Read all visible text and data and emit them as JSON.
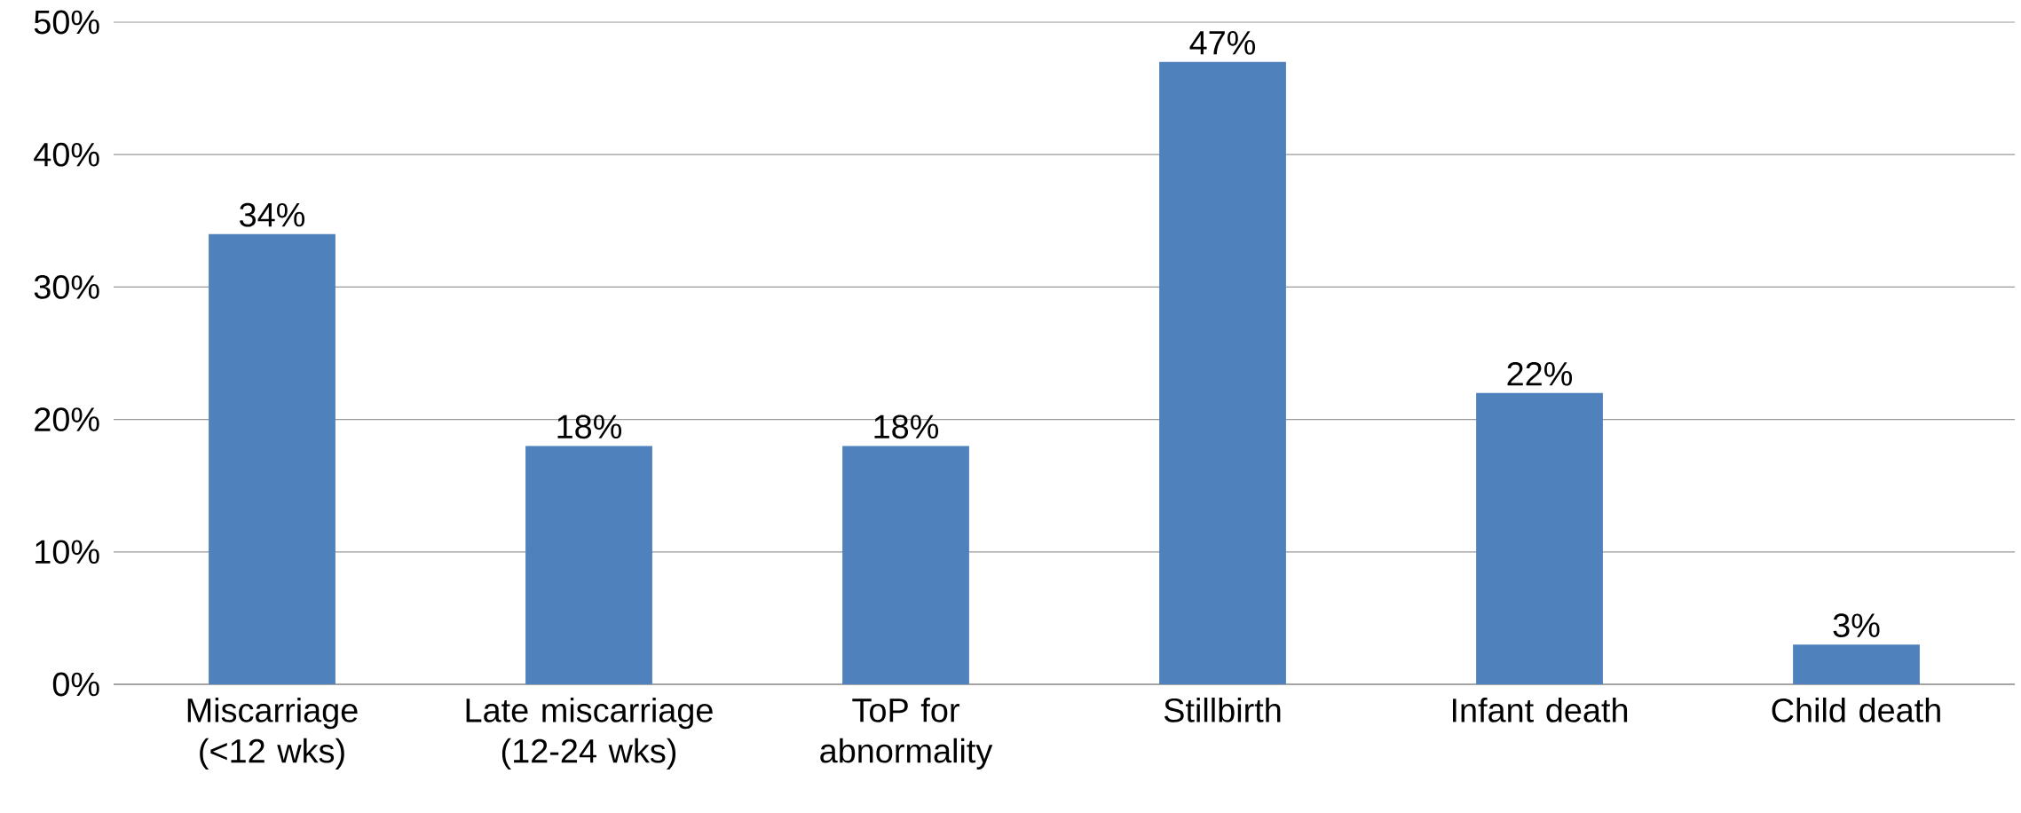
{
  "chart_data": {
    "type": "bar",
    "categories": [
      "Miscarriage (<12 wks)",
      "Late miscarriage (12-24 wks)",
      "ToP for abnormality",
      "Stillbirth",
      "Infant death",
      "Child death"
    ],
    "values": [
      34,
      18,
      18,
      47,
      22,
      3
    ],
    "value_labels": [
      "34%",
      "18%",
      "18%",
      "47%",
      "22%",
      "3%"
    ],
    "color": "#4f81bd",
    "ylim": [
      0,
      50
    ],
    "yticks": [
      {
        "value": 0,
        "label": "0%"
      },
      {
        "value": 10,
        "label": "10%"
      },
      {
        "value": 20,
        "label": "20%"
      },
      {
        "value": 30,
        "label": "30%"
      },
      {
        "value": 40,
        "label": "40%"
      },
      {
        "value": 50,
        "label": "50%"
      }
    ],
    "grid": "y"
  }
}
